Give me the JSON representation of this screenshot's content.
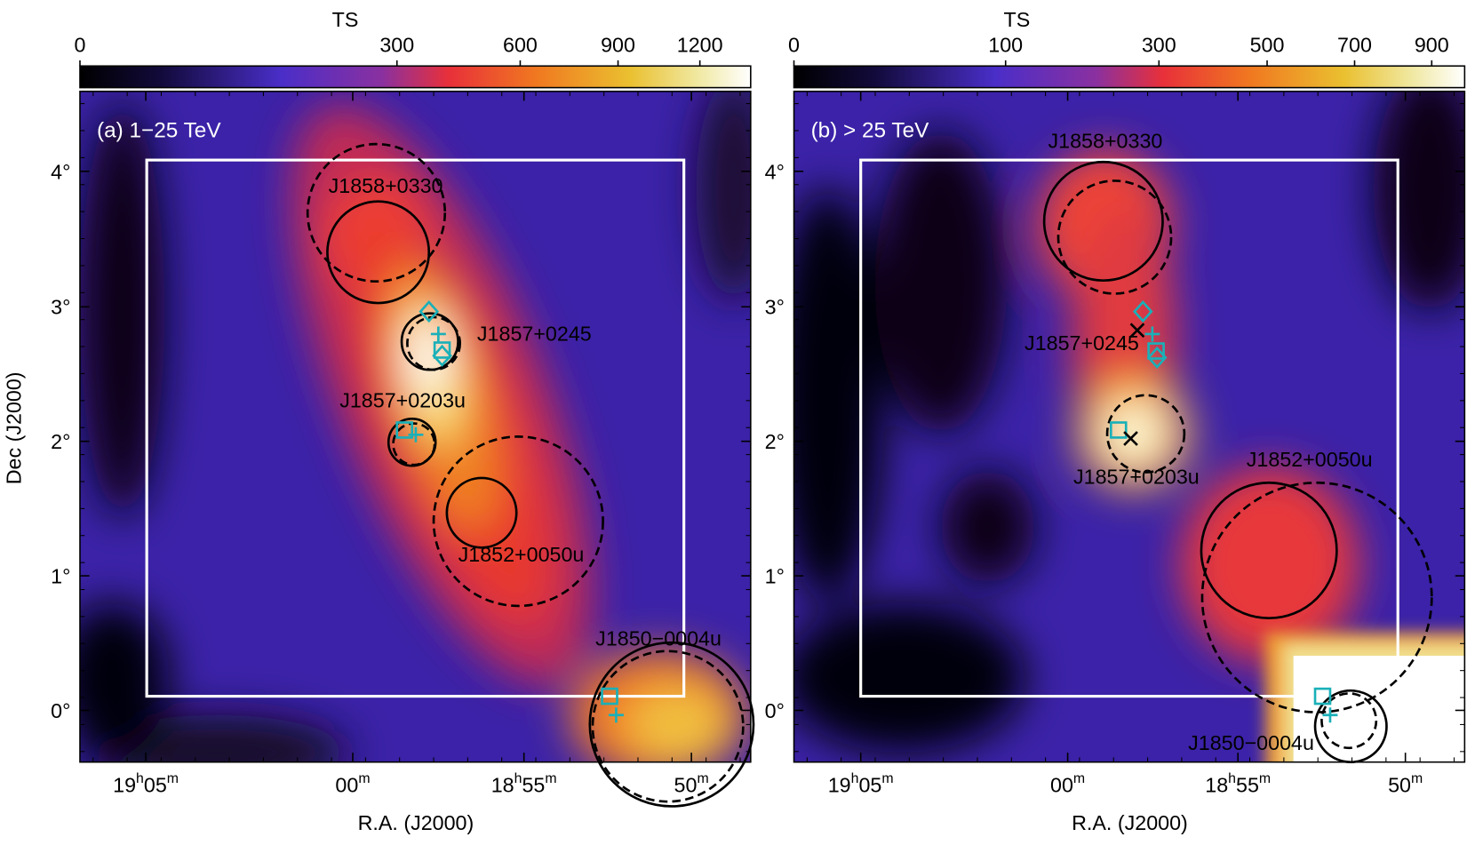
{
  "y_axis_label": "Dec (J2000)",
  "panels": [
    {
      "colorbar_title": "TS",
      "label": "(a) 1−25 TeV",
      "x_axis_label": "R.A. (J2000)",
      "colorbar_ticks": [
        "0",
        "300",
        "600",
        "900",
        "1200"
      ],
      "dec_ticks": [
        "4°",
        "3°",
        "2°",
        "1°",
        "0°"
      ],
      "ra_ticks": [
        [
          "19",
          "h",
          "05",
          "m"
        ],
        [
          "00",
          "m"
        ],
        [
          "18",
          "h",
          "55",
          "m"
        ],
        [
          "50",
          "m"
        ]
      ],
      "sources": [
        "J1858+0330",
        "J1857+0245",
        "J1857+0203u",
        "J1852+0050u",
        "J1850−0004u"
      ]
    },
    {
      "colorbar_title": "TS",
      "label": "(b) > 25 TeV",
      "x_axis_label": "R.A. (J2000)",
      "colorbar_ticks": [
        "0",
        "100",
        "300",
        "500",
        "700",
        "900"
      ],
      "dec_ticks": [
        "4°",
        "3°",
        "2°",
        "1°",
        "0°"
      ],
      "ra_ticks": [
        [
          "19",
          "h",
          "05",
          "m"
        ],
        [
          "00",
          "m"
        ],
        [
          "18",
          "h",
          "55",
          "m"
        ],
        [
          "50",
          "m"
        ]
      ],
      "sources": [
        "J1858+0330",
        "J1857+0245",
        "J1857+0203u",
        "J1852+0050u",
        "J1850−0004u"
      ]
    }
  ]
}
